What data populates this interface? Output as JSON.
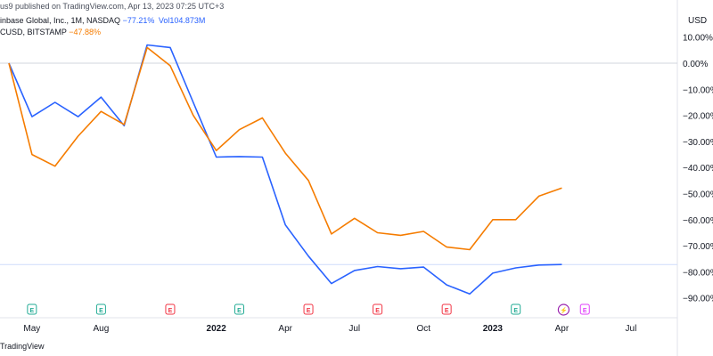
{
  "header": {
    "published": "us9 published on TradingView.com, Apr 13, 2023 07:25 UTC+3",
    "series1_symbol": "inbase Global, Inc., 1M, NASDAQ",
    "series1_change": "−77.21%",
    "series1_vol": "Vol104.873M",
    "series2_symbol": "CUSD, BITSTAMP",
    "series2_change": "−47.88%",
    "currency": "USD"
  },
  "footer": {
    "brand": "TradingView"
  },
  "chart_data": {
    "type": "line",
    "x": [
      "2021-04",
      "2021-05",
      "2021-06",
      "2021-07",
      "2021-08",
      "2021-09",
      "2021-10",
      "2021-11",
      "2021-12",
      "2022-01",
      "2022-02",
      "2022-03",
      "2022-04",
      "2022-05",
      "2022-06",
      "2022-07",
      "2022-08",
      "2022-09",
      "2022-10",
      "2022-11",
      "2022-12",
      "2023-01",
      "2023-02",
      "2023-03",
      "2023-04"
    ],
    "series": [
      {
        "name": "inbase Global, Inc., 1M, NASDAQ",
        "color": "#2962ff",
        "values": [
          0,
          -20.5,
          -15,
          -20.5,
          -13,
          -24,
          7,
          6,
          -15,
          -36,
          -35.8,
          -36,
          -62,
          -74,
          -84.5,
          -79.5,
          -78,
          -78.8,
          -78.2,
          -85,
          -88.5,
          -80.5,
          -78.5,
          -77.4,
          -77.2
        ]
      },
      {
        "name": "CUSD, BITSTAMP",
        "color": "#f57c00",
        "values": [
          0,
          -35,
          -39.5,
          -28,
          -18.5,
          -23.5,
          6,
          -1,
          -20,
          -33.5,
          -25.5,
          -21,
          -34.5,
          -45,
          -65.5,
          -59.5,
          -65,
          -66,
          -64.5,
          -70.5,
          -71.5,
          -60,
          -60,
          -51,
          -47.88
        ]
      }
    ],
    "ylim": [
      -95,
      12
    ],
    "y_ticks": [
      "10.00%",
      "0.00%",
      "−10.00%",
      "−20.00%",
      "−30.00%",
      "−40.00%",
      "−50.00%",
      "−60.00%",
      "−70.00%",
      "−80.00%",
      "−90.00%"
    ],
    "x_ticks": [
      {
        "label": "May",
        "x": "2021-05",
        "bold": false
      },
      {
        "label": "Aug",
        "x": "2021-08",
        "bold": false
      },
      {
        "label": "2022",
        "x": "2022-01",
        "bold": true
      },
      {
        "label": "Apr",
        "x": "2022-04",
        "bold": false
      },
      {
        "label": "Jul",
        "x": "2022-07",
        "bold": false
      },
      {
        "label": "Oct",
        "x": "2022-10",
        "bold": false
      },
      {
        "label": "2023",
        "x": "2023-01",
        "bold": true
      },
      {
        "label": "Apr",
        "x": "2023-04",
        "bold": false
      },
      {
        "label": "Jul",
        "x": "2023-07",
        "bold": false
      }
    ],
    "events": [
      {
        "x": "2021-05",
        "type": "earnings",
        "label": "E",
        "color": "#22ab94"
      },
      {
        "x": "2021-08",
        "type": "earnings",
        "label": "E",
        "color": "#22ab94"
      },
      {
        "x": "2021-11",
        "type": "earnings",
        "label": "E",
        "color": "#f23645"
      },
      {
        "x": "2022-02",
        "type": "earnings",
        "label": "E",
        "color": "#22ab94"
      },
      {
        "x": "2022-05",
        "type": "earnings",
        "label": "E",
        "color": "#f23645"
      },
      {
        "x": "2022-08",
        "type": "earnings",
        "label": "E",
        "color": "#f23645"
      },
      {
        "x": "2022-11",
        "type": "earnings",
        "label": "E",
        "color": "#f23645"
      },
      {
        "x": "2023-02",
        "type": "earnings",
        "label": "E",
        "color": "#22ab94"
      },
      {
        "x": "2023-04",
        "type": "split",
        "label": "⚡",
        "color": "#9c27b0"
      },
      {
        "x": "2023-05",
        "type": "earnings",
        "label": "E",
        "color": "#e040fb"
      }
    ],
    "grid": false,
    "zero_line": true
  }
}
